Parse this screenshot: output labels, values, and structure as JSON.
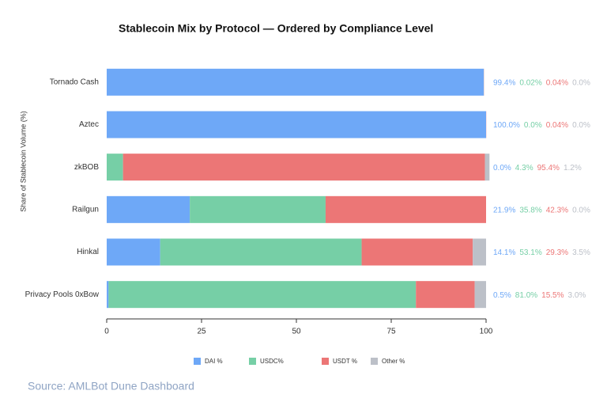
{
  "chart_data": {
    "type": "stacked-barh",
    "title": "Stablecoin Mix by Protocol — Ordered by Compliance Level",
    "y_label": "Share of Stablecoin Volume (%)",
    "source": "Source: AMLBot Dune Dashboard",
    "categories": [
      "Tornado Cash",
      "Aztec",
      "zkBOB",
      "Railgun",
      "Hinkal",
      "Privacy Pools 0xBow"
    ],
    "series": [
      {
        "name": "DAI %",
        "color": "#6ea8f7",
        "values": [
          99.4,
          100.0,
          0.0,
          21.9,
          14.1,
          0.5
        ],
        "value_labels": [
          "99.4%",
          "100.0%",
          "0.0%",
          "21.9%",
          "14.1%",
          "0.5%"
        ]
      },
      {
        "name": "USDC%",
        "color": "#76cfa6",
        "values": [
          0.02,
          0.0,
          4.3,
          35.8,
          53.1,
          81.0
        ],
        "value_labels": [
          "0.02%",
          "0.0%",
          "4.3%",
          "35.8%",
          "53.1%",
          "81.0%"
        ]
      },
      {
        "name": "USDT %",
        "color": "#ec7676",
        "values": [
          0.04,
          0.04,
          95.4,
          42.3,
          29.3,
          15.5
        ],
        "value_labels": [
          "0.04%",
          "0.04%",
          "95.4%",
          "42.3%",
          "29.3%",
          "15.5%"
        ]
      },
      {
        "name": "Other %",
        "color": "#bcc0c8",
        "values": [
          0.0,
          0.0,
          1.2,
          0.0,
          3.5,
          3.0
        ],
        "value_labels": [
          "0.0%",
          "0.0%",
          "1.2%",
          "0.0%",
          "3.5%",
          "3.0%"
        ]
      }
    ],
    "xlim": [
      0,
      100
    ],
    "xticks": [
      0,
      25,
      50,
      75,
      100
    ]
  }
}
